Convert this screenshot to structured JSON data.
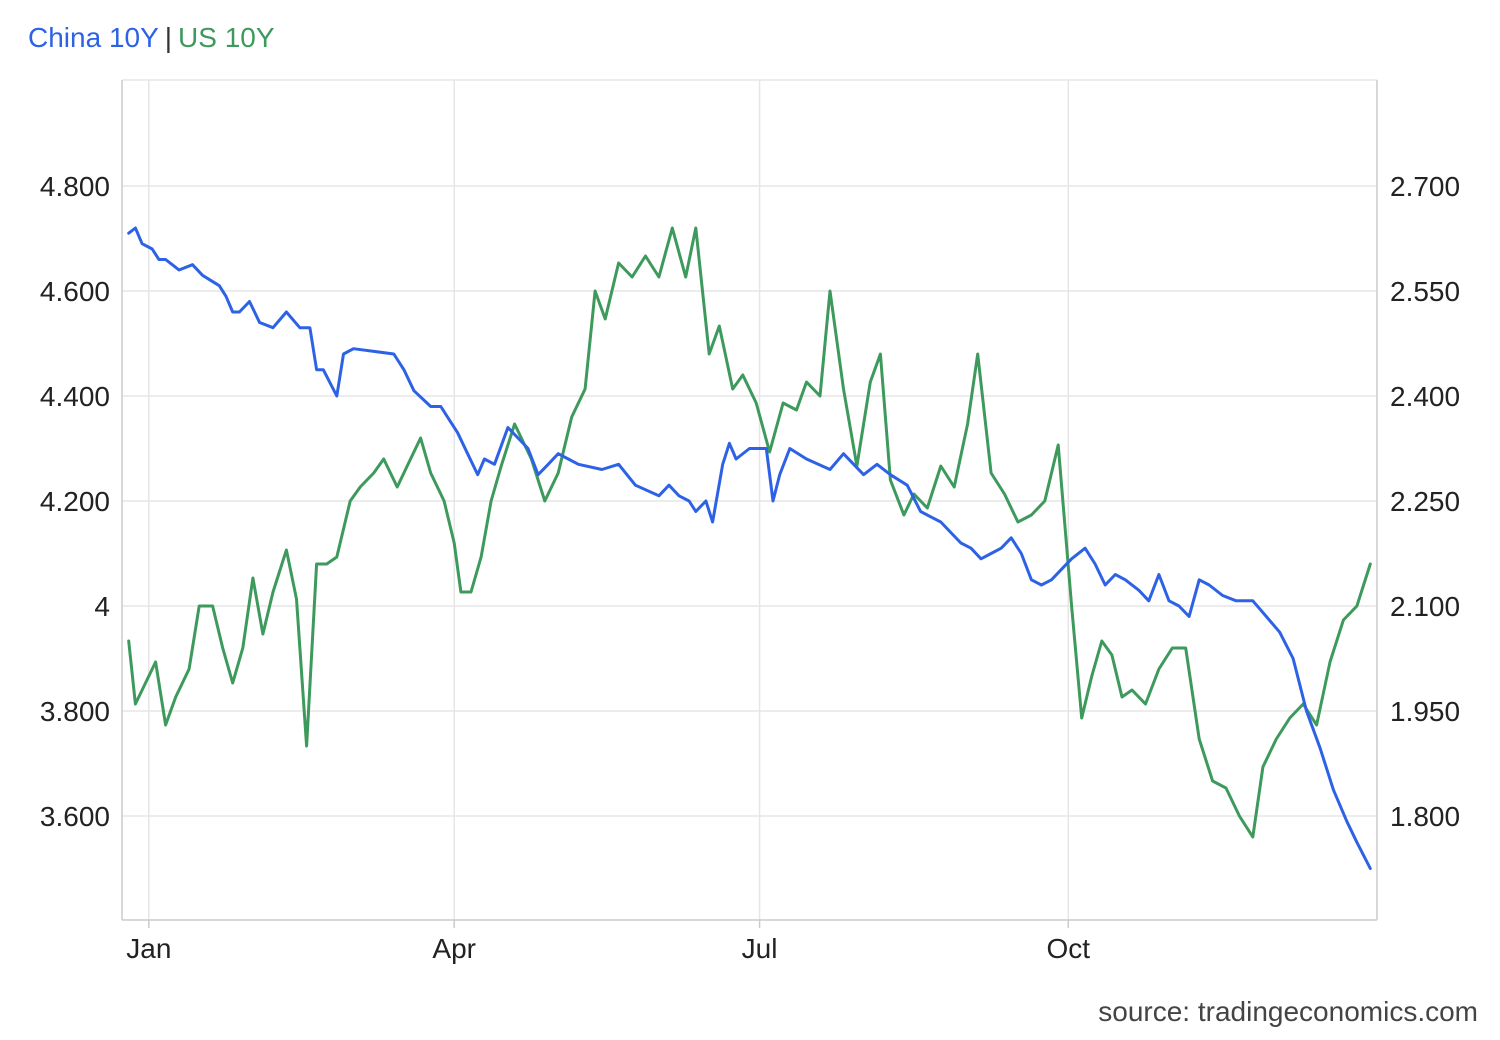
{
  "legend": {
    "series1": "China 10Y",
    "separator": "|",
    "series2": "US 10Y"
  },
  "source": "source: tradingeconomics.com",
  "colors": {
    "china": "#2e62e6",
    "us": "#3d9a5c",
    "grid": "#e6e6e6",
    "axis": "#cccccc"
  },
  "chart_data": {
    "type": "line",
    "x_axis": {
      "type": "date",
      "range": [
        "2024-01-01",
        "2024-12-31"
      ],
      "ticks": [
        "Jan",
        "Apr",
        "Jul",
        "Oct"
      ]
    },
    "y_axis_left": {
      "range": [
        3.4,
        5.0
      ],
      "ticks": [
        "3.600",
        "3.800",
        "4",
        "4.200",
        "4.400",
        "4.600",
        "4.800"
      ],
      "series": "China 10Y"
    },
    "y_axis_right": {
      "range": [
        1.6,
        2.8
      ],
      "ticks": [
        "1.800",
        "1.950",
        "2.100",
        "2.250",
        "2.400",
        "2.550",
        "2.700"
      ],
      "series": "US 10Y"
    },
    "grid": true,
    "series": [
      {
        "name": "China 10Y",
        "axis": "left",
        "points": [
          [
            "2023-12-26",
            4.71
          ],
          [
            "2023-12-28",
            4.72
          ],
          [
            "2023-12-30",
            4.69
          ],
          [
            "2024-01-02",
            4.68
          ],
          [
            "2024-01-04",
            4.66
          ],
          [
            "2024-01-06",
            4.66
          ],
          [
            "2024-01-08",
            4.65
          ],
          [
            "2024-01-10",
            4.64
          ],
          [
            "2024-01-14",
            4.65
          ],
          [
            "2024-01-17",
            4.63
          ],
          [
            "2024-01-22",
            4.61
          ],
          [
            "2024-01-24",
            4.59
          ],
          [
            "2024-01-26",
            4.56
          ],
          [
            "2024-01-28",
            4.56
          ],
          [
            "2024-01-31",
            4.58
          ],
          [
            "2024-02-03",
            4.54
          ],
          [
            "2024-02-07",
            4.53
          ],
          [
            "2024-02-11",
            4.56
          ],
          [
            "2024-02-15",
            4.53
          ],
          [
            "2024-02-18",
            4.53
          ],
          [
            "2024-02-20",
            4.45
          ],
          [
            "2024-02-22",
            4.45
          ],
          [
            "2024-02-26",
            4.4
          ],
          [
            "2024-02-28",
            4.48
          ],
          [
            "2024-03-02",
            4.49
          ],
          [
            "2024-03-14",
            4.48
          ],
          [
            "2024-03-17",
            4.45
          ],
          [
            "2024-03-20",
            4.41
          ],
          [
            "2024-03-25",
            4.38
          ],
          [
            "2024-03-28",
            4.38
          ],
          [
            "2024-03-31",
            4.35
          ],
          [
            "2024-04-02",
            4.33
          ],
          [
            "2024-04-05",
            4.29
          ],
          [
            "2024-04-08",
            4.25
          ],
          [
            "2024-04-10",
            4.28
          ],
          [
            "2024-04-13",
            4.27
          ],
          [
            "2024-04-17",
            4.34
          ],
          [
            "2024-04-20",
            4.32
          ],
          [
            "2024-04-23",
            4.3
          ],
          [
            "2024-04-26",
            4.25
          ],
          [
            "2024-04-29",
            4.27
          ],
          [
            "2024-05-02",
            4.29
          ],
          [
            "2024-05-05",
            4.28
          ],
          [
            "2024-05-08",
            4.27
          ],
          [
            "2024-05-15",
            4.26
          ],
          [
            "2024-05-20",
            4.27
          ],
          [
            "2024-05-25",
            4.23
          ],
          [
            "2024-06-01",
            4.21
          ],
          [
            "2024-06-04",
            4.23
          ],
          [
            "2024-06-07",
            4.21
          ],
          [
            "2024-06-10",
            4.2
          ],
          [
            "2024-06-12",
            4.18
          ],
          [
            "2024-06-15",
            4.2
          ],
          [
            "2024-06-17",
            4.16
          ],
          [
            "2024-06-20",
            4.27
          ],
          [
            "2024-06-22",
            4.31
          ],
          [
            "2024-06-24",
            4.28
          ],
          [
            "2024-06-28",
            4.3
          ],
          [
            "2024-07-03",
            4.3
          ],
          [
            "2024-07-05",
            4.2
          ],
          [
            "2024-07-07",
            4.25
          ],
          [
            "2024-07-10",
            4.3
          ],
          [
            "2024-07-15",
            4.28
          ],
          [
            "2024-07-22",
            4.26
          ],
          [
            "2024-07-26",
            4.29
          ],
          [
            "2024-08-01",
            4.25
          ],
          [
            "2024-08-05",
            4.27
          ],
          [
            "2024-08-09",
            4.25
          ],
          [
            "2024-08-14",
            4.23
          ],
          [
            "2024-08-18",
            4.18
          ],
          [
            "2024-08-21",
            4.17
          ],
          [
            "2024-08-24",
            4.16
          ],
          [
            "2024-08-27",
            4.14
          ],
          [
            "2024-08-30",
            4.12
          ],
          [
            "2024-09-02",
            4.11
          ],
          [
            "2024-09-05",
            4.09
          ],
          [
            "2024-09-08",
            4.1
          ],
          [
            "2024-09-11",
            4.11
          ],
          [
            "2024-09-14",
            4.13
          ],
          [
            "2024-09-17",
            4.1
          ],
          [
            "2024-09-20",
            4.05
          ],
          [
            "2024-09-23",
            4.04
          ],
          [
            "2024-09-26",
            4.05
          ],
          [
            "2024-09-29",
            4.07
          ],
          [
            "2024-10-02",
            4.09
          ],
          [
            "2024-10-06",
            4.11
          ],
          [
            "2024-10-09",
            4.08
          ],
          [
            "2024-10-12",
            4.04
          ],
          [
            "2024-10-15",
            4.06
          ],
          [
            "2024-10-18",
            4.05
          ],
          [
            "2024-10-22",
            4.03
          ],
          [
            "2024-10-25",
            4.01
          ],
          [
            "2024-10-28",
            4.06
          ],
          [
            "2024-10-31",
            4.01
          ],
          [
            "2024-11-03",
            4.0
          ],
          [
            "2024-11-06",
            3.98
          ],
          [
            "2024-11-09",
            4.05
          ],
          [
            "2024-11-12",
            4.04
          ],
          [
            "2024-11-16",
            4.02
          ],
          [
            "2024-11-20",
            4.01
          ],
          [
            "2024-11-25",
            4.01
          ],
          [
            "2024-11-29",
            3.98
          ],
          [
            "2024-12-03",
            3.95
          ],
          [
            "2024-12-07",
            3.9
          ],
          [
            "2024-12-11",
            3.8
          ],
          [
            "2024-12-15",
            3.73
          ],
          [
            "2024-12-19",
            3.65
          ],
          [
            "2024-12-23",
            3.59
          ],
          [
            "2024-12-26",
            3.55
          ],
          [
            "2024-12-30",
            3.5
          ]
        ]
      },
      {
        "name": "US 10Y",
        "axis": "right",
        "points": [
          [
            "2023-12-26",
            2.05
          ],
          [
            "2023-12-28",
            1.96
          ],
          [
            "2023-12-31",
            1.99
          ],
          [
            "2024-01-03",
            2.02
          ],
          [
            "2024-01-06",
            1.93
          ],
          [
            "2024-01-09",
            1.97
          ],
          [
            "2024-01-13",
            2.01
          ],
          [
            "2024-01-16",
            2.1
          ],
          [
            "2024-01-20",
            2.1
          ],
          [
            "2024-01-23",
            2.04
          ],
          [
            "2024-01-26",
            1.99
          ],
          [
            "2024-01-29",
            2.04
          ],
          [
            "2024-02-01",
            2.14
          ],
          [
            "2024-02-04",
            2.06
          ],
          [
            "2024-02-07",
            2.12
          ],
          [
            "2024-02-11",
            2.18
          ],
          [
            "2024-02-14",
            2.11
          ],
          [
            "2024-02-17",
            1.9
          ],
          [
            "2024-02-20",
            2.16
          ],
          [
            "2024-02-23",
            2.16
          ],
          [
            "2024-02-26",
            2.17
          ],
          [
            "2024-03-01",
            2.25
          ],
          [
            "2024-03-04",
            2.27
          ],
          [
            "2024-03-08",
            2.29
          ],
          [
            "2024-03-11",
            2.31
          ],
          [
            "2024-03-15",
            2.27
          ],
          [
            "2024-03-18",
            2.3
          ],
          [
            "2024-03-22",
            2.34
          ],
          [
            "2024-03-25",
            2.29
          ],
          [
            "2024-03-29",
            2.25
          ],
          [
            "2024-04-01",
            2.19
          ],
          [
            "2024-04-03",
            2.12
          ],
          [
            "2024-04-06",
            2.12
          ],
          [
            "2024-04-09",
            2.17
          ],
          [
            "2024-04-12",
            2.25
          ],
          [
            "2024-04-15",
            2.3
          ],
          [
            "2024-04-19",
            2.36
          ],
          [
            "2024-04-24",
            2.31
          ],
          [
            "2024-04-28",
            2.25
          ],
          [
            "2024-05-02",
            2.29
          ],
          [
            "2024-05-06",
            2.37
          ],
          [
            "2024-05-10",
            2.41
          ],
          [
            "2024-05-13",
            2.55
          ],
          [
            "2024-05-16",
            2.51
          ],
          [
            "2024-05-20",
            2.59
          ],
          [
            "2024-05-24",
            2.57
          ],
          [
            "2024-05-28",
            2.6
          ],
          [
            "2024-06-01",
            2.57
          ],
          [
            "2024-06-05",
            2.64
          ],
          [
            "2024-06-09",
            2.57
          ],
          [
            "2024-06-12",
            2.64
          ],
          [
            "2024-06-16",
            2.46
          ],
          [
            "2024-06-19",
            2.5
          ],
          [
            "2024-06-23",
            2.41
          ],
          [
            "2024-06-26",
            2.43
          ],
          [
            "2024-06-30",
            2.39
          ],
          [
            "2024-07-04",
            2.32
          ],
          [
            "2024-07-08",
            2.39
          ],
          [
            "2024-07-12",
            2.38
          ],
          [
            "2024-07-15",
            2.42
          ],
          [
            "2024-07-19",
            2.4
          ],
          [
            "2024-07-22",
            2.55
          ],
          [
            "2024-07-26",
            2.41
          ],
          [
            "2024-07-30",
            2.3
          ],
          [
            "2024-08-03",
            2.42
          ],
          [
            "2024-08-06",
            2.46
          ],
          [
            "2024-08-09",
            2.28
          ],
          [
            "2024-08-13",
            2.23
          ],
          [
            "2024-08-16",
            2.26
          ],
          [
            "2024-08-20",
            2.24
          ],
          [
            "2024-08-24",
            2.3
          ],
          [
            "2024-08-28",
            2.27
          ],
          [
            "2024-09-01",
            2.36
          ],
          [
            "2024-09-04",
            2.46
          ],
          [
            "2024-09-08",
            2.29
          ],
          [
            "2024-09-12",
            2.26
          ],
          [
            "2024-09-16",
            2.22
          ],
          [
            "2024-09-20",
            2.23
          ],
          [
            "2024-09-24",
            2.25
          ],
          [
            "2024-09-28",
            2.33
          ],
          [
            "2024-10-02",
            2.1
          ],
          [
            "2024-10-05",
            1.94
          ],
          [
            "2024-10-08",
            2.0
          ],
          [
            "2024-10-11",
            2.05
          ],
          [
            "2024-10-14",
            2.03
          ],
          [
            "2024-10-17",
            1.97
          ],
          [
            "2024-10-20",
            1.98
          ],
          [
            "2024-10-24",
            1.96
          ],
          [
            "2024-10-28",
            2.01
          ],
          [
            "2024-11-01",
            2.04
          ],
          [
            "2024-11-05",
            2.04
          ],
          [
            "2024-11-09",
            1.91
          ],
          [
            "2024-11-13",
            1.85
          ],
          [
            "2024-11-17",
            1.84
          ],
          [
            "2024-11-21",
            1.8
          ],
          [
            "2024-11-25",
            1.77
          ],
          [
            "2024-11-28",
            1.87
          ],
          [
            "2024-12-02",
            1.91
          ],
          [
            "2024-12-06",
            1.94
          ],
          [
            "2024-12-10",
            1.96
          ],
          [
            "2024-12-14",
            1.93
          ],
          [
            "2024-12-18",
            2.02
          ],
          [
            "2024-12-22",
            2.08
          ],
          [
            "2024-12-26",
            2.1
          ],
          [
            "2024-12-30",
            2.16
          ]
        ]
      }
    ]
  }
}
